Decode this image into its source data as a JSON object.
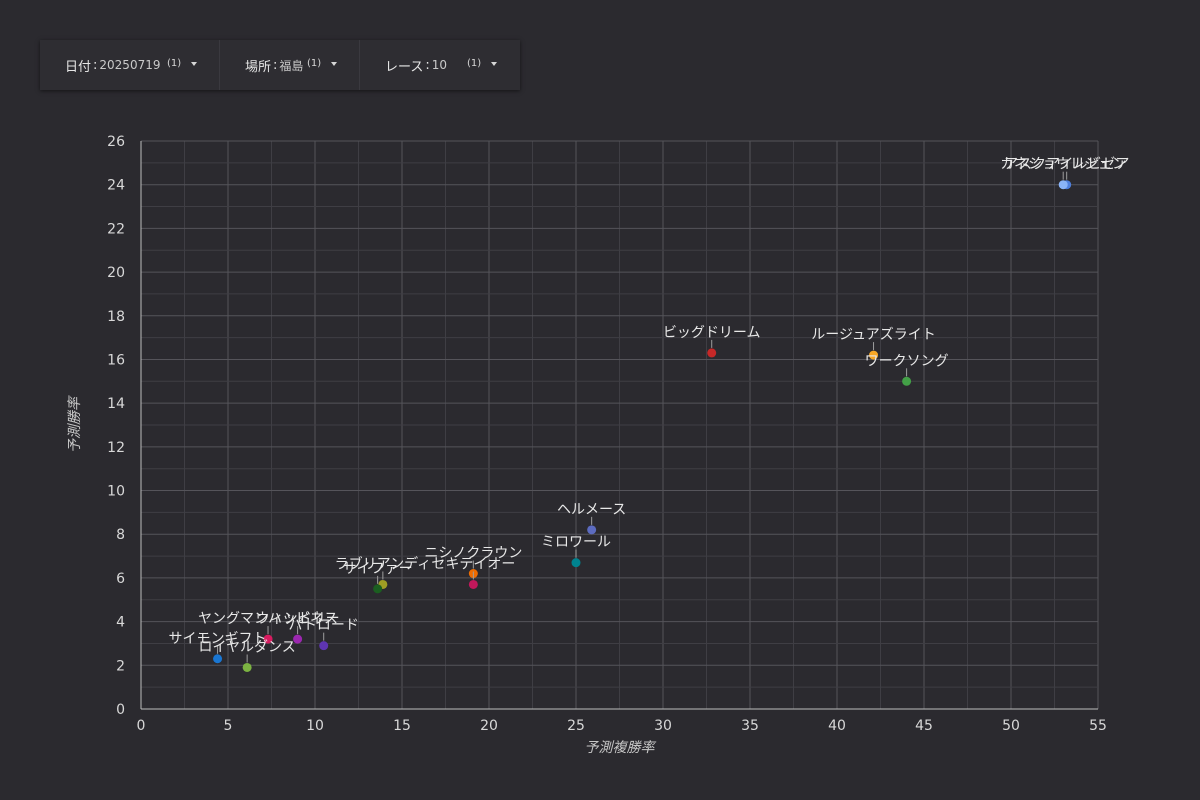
{
  "filters": [
    {
      "label": "日付",
      "value": "20250719",
      "count": "(1)"
    },
    {
      "label": "場所",
      "value": "福島",
      "count": "(1)"
    },
    {
      "label": "レース",
      "value": "10",
      "count": "(1)"
    }
  ],
  "chart_data": {
    "type": "scatter",
    "xlabel": "予測複勝率",
    "ylabel": "予測勝率",
    "xlim": [
      0,
      55
    ],
    "ylim": [
      0,
      26
    ],
    "x_ticks": [
      0,
      5,
      10,
      15,
      20,
      25,
      30,
      35,
      40,
      45,
      50,
      55
    ],
    "y_ticks": [
      0,
      2,
      4,
      6,
      8,
      10,
      12,
      14,
      16,
      18,
      20,
      22,
      24,
      26
    ],
    "grid": true,
    "points": [
      {
        "label": "アスクアイルビゼア",
        "x": 53.2,
        "y": 24.0,
        "color": "#4e7fdc"
      },
      {
        "label": "カネショウレジェン",
        "x": 53.0,
        "y": 24.0,
        "color": "#8ab4f8"
      },
      {
        "label": "ビッグドリーム",
        "x": 32.8,
        "y": 16.3,
        "color": "#c62828"
      },
      {
        "label": "ルージュアズライト",
        "x": 42.1,
        "y": 16.2,
        "color": "#f9a825"
      },
      {
        "label": "ワークソング",
        "x": 44.0,
        "y": 15.0,
        "color": "#43a047"
      },
      {
        "label": "ヘルメース",
        "x": 25.9,
        "y": 8.2,
        "color": "#5c6bc0"
      },
      {
        "label": "ミロワール",
        "x": 25.0,
        "y": 6.7,
        "color": "#00838f"
      },
      {
        "label": "ニシノクラウン",
        "x": 19.1,
        "y": 6.2,
        "color": "#ef6c00"
      },
      {
        "label": "セキテイオー",
        "x": 19.1,
        "y": 5.7,
        "color": "#c2185b"
      },
      {
        "label": "ラブリアンディ",
        "x": 13.9,
        "y": 5.7,
        "color": "#9e9d24"
      },
      {
        "label": "サイファー",
        "x": 13.6,
        "y": 5.5,
        "color": "#1b5e20"
      },
      {
        "label": "ヤングマンハッピネス",
        "x": 7.3,
        "y": 3.2,
        "color": "#d81b60"
      },
      {
        "label": "ウィンドリー",
        "x": 9.0,
        "y": 3.2,
        "color": "#9c27b0"
      },
      {
        "label": "パトロード",
        "x": 10.5,
        "y": 2.9,
        "color": "#5e35b1"
      },
      {
        "label": "サイモンギフト",
        "x": 4.4,
        "y": 2.3,
        "color": "#1976d2"
      },
      {
        "label": "ロイヤルダンス",
        "x": 6.1,
        "y": 1.9,
        "color": "#7cb342"
      }
    ]
  }
}
